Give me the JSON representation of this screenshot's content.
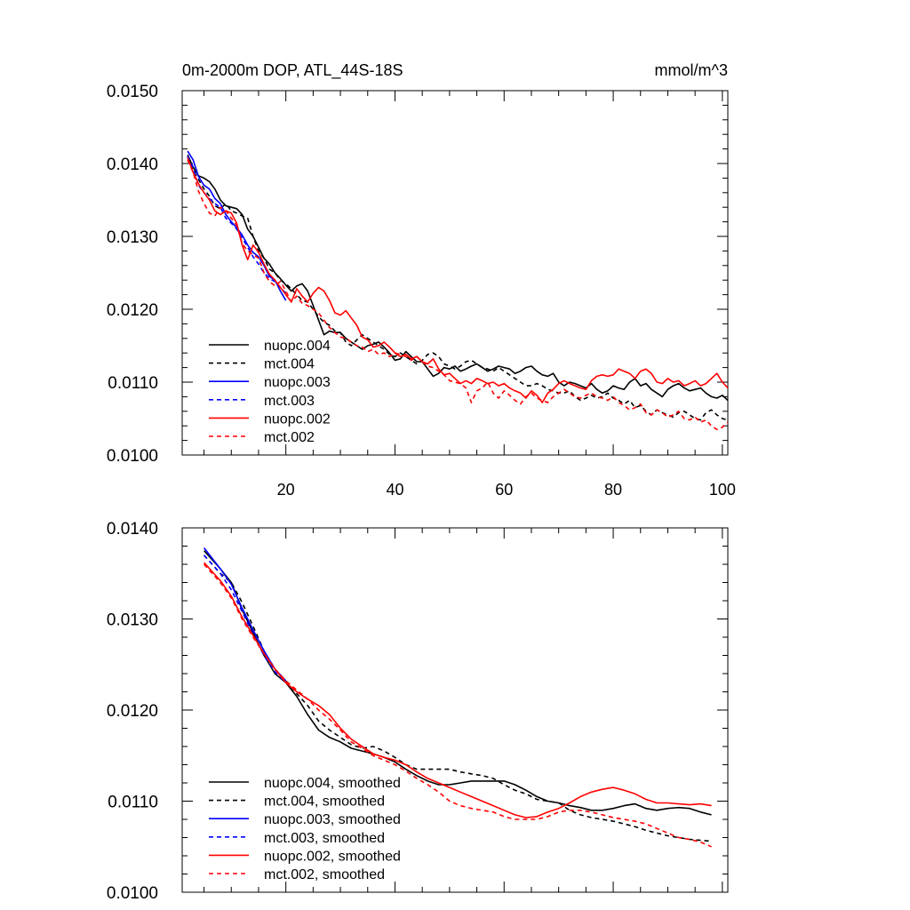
{
  "chart_data": [
    {
      "type": "line",
      "title": "0m-2000m DOP, ATL_44S-18S",
      "units": "mmol/m^3",
      "xlabel": "",
      "ylabel": "",
      "xlim": [
        1,
        101
      ],
      "ylim": [
        0.01,
        0.015
      ],
      "x_ticks": [
        20,
        40,
        60,
        80,
        100
      ],
      "x_tick_labels": [
        "20",
        "40",
        "60",
        "80",
        "100"
      ],
      "y_ticks": [
        0.01,
        0.011,
        0.012,
        0.013,
        0.014,
        0.015
      ],
      "y_tick_labels": [
        "0.0100",
        "0.0110",
        "0.0120",
        "0.0130",
        "0.0140",
        "0.0150"
      ],
      "legend_position": "bottom-left",
      "series": [
        {
          "name": "nuopc.004",
          "color": "#000000",
          "dash": "solid",
          "x_start": 2,
          "values": [
            0.01412,
            0.01395,
            0.01383,
            0.0138,
            0.01375,
            0.01365,
            0.0135,
            0.01342,
            0.0134,
            0.01338,
            0.0133,
            0.0131,
            0.013,
            0.01285,
            0.0127,
            0.01262,
            0.0125,
            0.01242,
            0.01233,
            0.01225,
            0.01232,
            0.01235,
            0.01225,
            0.01205,
            0.01185,
            0.01165,
            0.0117,
            0.01168,
            0.01168,
            0.0116,
            0.01155,
            0.0115,
            0.01145,
            0.0115,
            0.01152,
            0.01155,
            0.01148,
            0.0114,
            0.0113,
            0.01132,
            0.01142,
            0.01135,
            0.01128,
            0.01128,
            0.01118,
            0.01108,
            0.01112,
            0.0112,
            0.01118,
            0.01122,
            0.01115,
            0.01118,
            0.01122,
            0.01125,
            0.0112,
            0.01115,
            0.01118,
            0.01122,
            0.0112,
            0.01118,
            0.01112,
            0.01115,
            0.0112,
            0.01122,
            0.01115,
            0.0111,
            0.01108,
            0.01112,
            0.011,
            0.01095,
            0.011,
            0.01098,
            0.01095,
            0.01092,
            0.01098,
            0.0109,
            0.01085,
            0.01088,
            0.01095,
            0.01092,
            0.0109,
            0.011,
            0.01105,
            0.01095,
            0.01098,
            0.0109,
            0.01085,
            0.0108,
            0.0109,
            0.01095,
            0.01098,
            0.01092,
            0.01088,
            0.0109,
            0.01092,
            0.01085,
            0.0108,
            0.01078,
            0.01082,
            0.01075
          ]
        },
        {
          "name": "mct.004",
          "color": "#000000",
          "dash": "dashed",
          "x_start": 2,
          "values": [
            0.01408,
            0.0139,
            0.01378,
            0.01365,
            0.01355,
            0.01342,
            0.01338,
            0.01345,
            0.01335,
            0.01332,
            0.01328,
            0.01325,
            0.013,
            0.0128,
            0.0127,
            0.01255,
            0.0125,
            0.0124,
            0.01235,
            0.01228,
            0.0122,
            0.01212,
            0.0121,
            0.012,
            0.0119,
            0.01182,
            0.01178,
            0.0117,
            0.01168,
            0.01155,
            0.0115,
            0.01158,
            0.01165,
            0.0116,
            0.01155,
            0.0115,
            0.01145,
            0.01138,
            0.01135,
            0.0114,
            0.01135,
            0.0113,
            0.01125,
            0.0113,
            0.01138,
            0.0114,
            0.01135,
            0.01125,
            0.01122,
            0.01118,
            0.01122,
            0.01128,
            0.0113,
            0.01125,
            0.0112,
            0.01118,
            0.01115,
            0.0112,
            0.01115,
            0.0111,
            0.01105,
            0.011,
            0.01095,
            0.01095,
            0.01098,
            0.01095,
            0.0109,
            0.01088,
            0.01085,
            0.01085,
            0.01088,
            0.0108,
            0.01075,
            0.01078,
            0.01082,
            0.01078,
            0.0108,
            0.01085,
            0.01078,
            0.01075,
            0.0107,
            0.01075,
            0.01065,
            0.01068,
            0.0106,
            0.01055,
            0.01062,
            0.01058,
            0.01055,
            0.01052,
            0.01058,
            0.0106,
            0.01055,
            0.0105,
            0.01048,
            0.01058,
            0.01062,
            0.01055,
            0.0105,
            0.01048
          ]
        },
        {
          "name": "nuopc.003",
          "color": "#0000ff",
          "dash": "solid",
          "x_start": 2,
          "values": [
            0.01417,
            0.01405,
            0.01382,
            0.0137,
            0.01365,
            0.01352,
            0.01345,
            0.0133,
            0.0132,
            0.01312,
            0.01302,
            0.01288,
            0.01278,
            0.01272,
            0.0126,
            0.01245,
            0.0124,
            0.01225,
            0.01212
          ]
        },
        {
          "name": "mct.003",
          "color": "#0000ff",
          "dash": "dashed",
          "x_start": 2,
          "values": [
            0.0141,
            0.01395,
            0.0137,
            0.0136,
            0.01352,
            0.01345,
            0.0134,
            0.01325,
            0.01318,
            0.0131,
            0.01298,
            0.01285,
            0.01272,
            0.01262,
            0.0125,
            0.01242,
            0.01238,
            0.0123,
            0.01222
          ]
        },
        {
          "name": "nuopc.002",
          "color": "#ff0000",
          "dash": "solid",
          "x_start": 2,
          "values": [
            0.01408,
            0.01388,
            0.01372,
            0.0136,
            0.0135,
            0.01335,
            0.0133,
            0.01335,
            0.01332,
            0.01318,
            0.01288,
            0.01268,
            0.01288,
            0.01278,
            0.01262,
            0.01248,
            0.0124,
            0.0123,
            0.0122,
            0.0121,
            0.01228,
            0.01218,
            0.0121,
            0.01222,
            0.0123,
            0.01225,
            0.01212,
            0.01195,
            0.01192,
            0.01198,
            0.01188,
            0.01178,
            0.01162,
            0.01158,
            0.01148,
            0.0115,
            0.01155,
            0.01148,
            0.0114,
            0.01135,
            0.01138,
            0.01132,
            0.01135,
            0.01128,
            0.01125,
            0.01132,
            0.01118,
            0.0111,
            0.01112,
            0.01105,
            0.01098,
            0.01102,
            0.01098,
            0.01105,
            0.01102,
            0.01098,
            0.011,
            0.01095,
            0.01098,
            0.01092,
            0.01088,
            0.01085,
            0.01078,
            0.01088,
            0.01082,
            0.01072,
            0.01085,
            0.0109,
            0.01098,
            0.01102,
            0.01098,
            0.01095,
            0.01092,
            0.0109,
            0.01102,
            0.01108,
            0.0111,
            0.01108,
            0.0111,
            0.01118,
            0.01115,
            0.01112,
            0.01105,
            0.01115,
            0.01118,
            0.01112,
            0.011,
            0.01098,
            0.01105,
            0.011,
            0.01102,
            0.01095,
            0.01098,
            0.01102,
            0.01095,
            0.01098,
            0.01105,
            0.01112,
            0.011,
            0.01092
          ]
        },
        {
          "name": "mct.002",
          "color": "#ff0000",
          "dash": "dashed",
          "x_start": 2,
          "values": [
            0.01405,
            0.01388,
            0.01362,
            0.01345,
            0.01332,
            0.01328,
            0.0134,
            0.01335,
            0.01325,
            0.01315,
            0.0129,
            0.0128,
            0.01275,
            0.0127,
            0.0125,
            0.01238,
            0.01232,
            0.01238,
            0.01225,
            0.0121,
            0.01218,
            0.01208,
            0.01205,
            0.012,
            0.01195,
            0.01185,
            0.01175,
            0.01168,
            0.01162,
            0.0116,
            0.01155,
            0.0115,
            0.01148,
            0.01142,
            0.01145,
            0.01138,
            0.0114,
            0.01135,
            0.0114,
            0.01138,
            0.01135,
            0.0113,
            0.01135,
            0.01128,
            0.01122,
            0.0112,
            0.01115,
            0.0111,
            0.01102,
            0.011,
            0.01098,
            0.01092,
            0.01072,
            0.01088,
            0.01092,
            0.011,
            0.01085,
            0.01078,
            0.01088,
            0.01082,
            0.01075,
            0.0107,
            0.0108,
            0.01085,
            0.01078,
            0.01075,
            0.01072,
            0.0108,
            0.01085,
            0.0109,
            0.01085,
            0.0108,
            0.01078,
            0.01082,
            0.01085,
            0.0108,
            0.01078,
            0.01075,
            0.0108,
            0.01072,
            0.01068,
            0.01062,
            0.01065,
            0.0107,
            0.01058,
            0.01055,
            0.01062,
            0.01058,
            0.01052,
            0.01055,
            0.0106,
            0.0105,
            0.01048,
            0.01052,
            0.01045,
            0.01048,
            0.0104,
            0.01035,
            0.01038,
            0.01045
          ]
        }
      ]
    },
    {
      "type": "line",
      "title": "",
      "xlabel": "",
      "ylabel": "",
      "xlim": [
        1,
        101
      ],
      "ylim": [
        0.01,
        0.014
      ],
      "x_ticks": [
        20,
        40,
        60,
        80,
        100
      ],
      "x_tick_labels": [],
      "y_ticks": [
        0.01,
        0.011,
        0.012,
        0.013,
        0.014
      ],
      "y_tick_labels": [
        "0.0100",
        "0.0110",
        "0.0120",
        "0.0130",
        "0.0140"
      ],
      "legend_position": "bottom-left",
      "series": [
        {
          "name": "nuopc.004, smoothed",
          "color": "#000000",
          "dash": "solid",
          "x": [
            5,
            8,
            10,
            12,
            14,
            16,
            18,
            20,
            22,
            24,
            26,
            28,
            30,
            32,
            34,
            36,
            38,
            40,
            42,
            44,
            46,
            48,
            50,
            52,
            54,
            56,
            58,
            60,
            62,
            64,
            66,
            68,
            70,
            72,
            74,
            76,
            78,
            80,
            82,
            84,
            86,
            88,
            90,
            92,
            94,
            96,
            98
          ],
          "values": [
            0.01375,
            0.01355,
            0.0134,
            0.0131,
            0.01285,
            0.0126,
            0.0124,
            0.0123,
            0.01215,
            0.01195,
            0.01178,
            0.0117,
            0.01165,
            0.01158,
            0.01155,
            0.01152,
            0.01148,
            0.01143,
            0.01135,
            0.01128,
            0.01122,
            0.01118,
            0.01118,
            0.0112,
            0.01122,
            0.01122,
            0.01122,
            0.01122,
            0.01118,
            0.01112,
            0.01105,
            0.011,
            0.01098,
            0.01095,
            0.01093,
            0.0109,
            0.0109,
            0.01092,
            0.01095,
            0.01097,
            0.01092,
            0.0109,
            0.01092,
            0.01093,
            0.01092,
            0.01088,
            0.01085
          ]
        },
        {
          "name": "mct.004, smoothed",
          "color": "#000000",
          "dash": "dashed",
          "x": [
            5,
            8,
            10,
            12,
            14,
            16,
            18,
            20,
            22,
            24,
            26,
            28,
            30,
            32,
            34,
            36,
            38,
            40,
            42,
            44,
            46,
            48,
            50,
            52,
            54,
            56,
            58,
            60,
            62,
            64,
            66,
            68,
            70,
            72,
            74,
            76,
            78,
            80,
            82,
            84,
            86,
            88,
            90,
            92,
            94,
            96,
            98
          ],
          "values": [
            0.0137,
            0.0135,
            0.0134,
            0.01318,
            0.01292,
            0.01265,
            0.01245,
            0.01232,
            0.01218,
            0.01205,
            0.01188,
            0.01178,
            0.0117,
            0.01162,
            0.01158,
            0.0116,
            0.01155,
            0.01148,
            0.0114,
            0.01135,
            0.01135,
            0.01135,
            0.01135,
            0.01132,
            0.0113,
            0.01128,
            0.01125,
            0.01118,
            0.01112,
            0.01108,
            0.01102,
            0.011,
            0.01098,
            0.0109,
            0.01085,
            0.01082,
            0.0108,
            0.01078,
            0.01075,
            0.01072,
            0.01068,
            0.01065,
            0.01062,
            0.0106,
            0.01058,
            0.01057,
            0.01056
          ]
        },
        {
          "name": "nuopc.003, smoothed",
          "color": "#0000ff",
          "dash": "solid",
          "x": [
            5,
            8,
            10,
            12,
            14,
            16,
            18,
            20
          ],
          "values": [
            0.01378,
            0.01355,
            0.01338,
            0.01312,
            0.01288,
            0.01265,
            0.01245,
            0.01232
          ]
        },
        {
          "name": "mct.003, smoothed",
          "color": "#0000ff",
          "dash": "dashed",
          "x": [
            5,
            8,
            10,
            12,
            14,
            16,
            18,
            20
          ],
          "values": [
            0.0137,
            0.0135,
            0.01332,
            0.01308,
            0.01283,
            0.0126,
            0.01242,
            0.0123
          ]
        },
        {
          "name": "nuopc.002, smoothed",
          "color": "#ff0000",
          "dash": "solid",
          "x": [
            5,
            8,
            10,
            12,
            14,
            16,
            18,
            20,
            22,
            24,
            26,
            28,
            30,
            32,
            34,
            36,
            38,
            40,
            42,
            44,
            46,
            48,
            50,
            52,
            54,
            56,
            58,
            60,
            62,
            64,
            66,
            68,
            70,
            72,
            74,
            76,
            78,
            80,
            82,
            84,
            86,
            88,
            90,
            92,
            94,
            96,
            98
          ],
          "values": [
            0.01362,
            0.01342,
            0.01325,
            0.01302,
            0.01282,
            0.01262,
            0.01245,
            0.0123,
            0.0122,
            0.01212,
            0.01205,
            0.01195,
            0.0118,
            0.01168,
            0.0116,
            0.01152,
            0.01148,
            0.01145,
            0.0114,
            0.01132,
            0.01125,
            0.0112,
            0.01115,
            0.0111,
            0.01105,
            0.011,
            0.01095,
            0.0109,
            0.01085,
            0.01082,
            0.01083,
            0.01088,
            0.01092,
            0.01098,
            0.01105,
            0.0111,
            0.01113,
            0.01115,
            0.01112,
            0.01108,
            0.01102,
            0.01098,
            0.01098,
            0.01097,
            0.01096,
            0.01097,
            0.01095
          ]
        },
        {
          "name": "mct.002, smoothed",
          "color": "#ff0000",
          "dash": "dashed",
          "x": [
            5,
            8,
            10,
            12,
            14,
            16,
            18,
            20,
            22,
            24,
            26,
            28,
            30,
            32,
            34,
            36,
            38,
            40,
            42,
            44,
            46,
            48,
            50,
            52,
            54,
            56,
            58,
            60,
            62,
            64,
            66,
            68,
            70,
            72,
            74,
            76,
            78,
            80,
            82,
            84,
            86,
            88,
            90,
            92,
            94,
            96,
            98
          ],
          "values": [
            0.0136,
            0.0134,
            0.01323,
            0.013,
            0.0128,
            0.01262,
            0.01245,
            0.01232,
            0.01222,
            0.01212,
            0.012,
            0.0119,
            0.01178,
            0.01165,
            0.01158,
            0.0115,
            0.01145,
            0.0114,
            0.01133,
            0.01125,
            0.01118,
            0.0111,
            0.011,
            0.01095,
            0.01092,
            0.0109,
            0.01088,
            0.01083,
            0.0108,
            0.0108,
            0.0108,
            0.01083,
            0.01088,
            0.0109,
            0.0109,
            0.01088,
            0.01085,
            0.01082,
            0.0108,
            0.01078,
            0.01075,
            0.0107,
            0.01065,
            0.0106,
            0.01058,
            0.01055,
            0.0105
          ]
        }
      ]
    }
  ]
}
